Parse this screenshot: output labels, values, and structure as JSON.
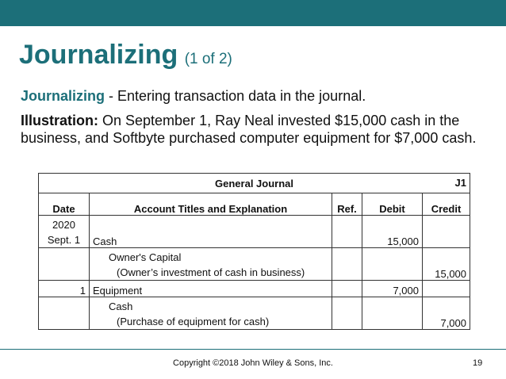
{
  "slide": {
    "title": "Journalizing",
    "title_suffix": "(1 of 2)",
    "def_term": "Journalizing",
    "def_text": " - Entering transaction data in the journal.",
    "illus_label": "Illustration:",
    "illus_text": " On September 1, Ray Neal invested $15,000 cash in the business, and Softbyte purchased computer equipment for $7,000 cash."
  },
  "journal": {
    "title": "General Journal",
    "ref": "J1",
    "columns": [
      "Date",
      "Account Titles and Explanation",
      "Ref.",
      "Debit",
      "Credit"
    ],
    "rows": [
      {
        "date_year": "2020",
        "date": "Sept. 1",
        "account": "Cash",
        "debit": "15,000",
        "credit": ""
      },
      {
        "account": "Owner's Capital",
        "explanation": "(Owner’s investment of cash in business)",
        "debit": "",
        "credit": "15,000"
      },
      {
        "date": "1",
        "account": "Equipment",
        "debit": "7,000",
        "credit": ""
      },
      {
        "account": "Cash",
        "explanation": "(Purchase of equipment for cash)",
        "debit": "",
        "credit": "7,000"
      }
    ]
  },
  "footer": {
    "copyright": "Copyright ©2018 John Wiley & Sons, Inc.",
    "page": "19"
  },
  "colors": {
    "accent": "#1c6f79"
  }
}
